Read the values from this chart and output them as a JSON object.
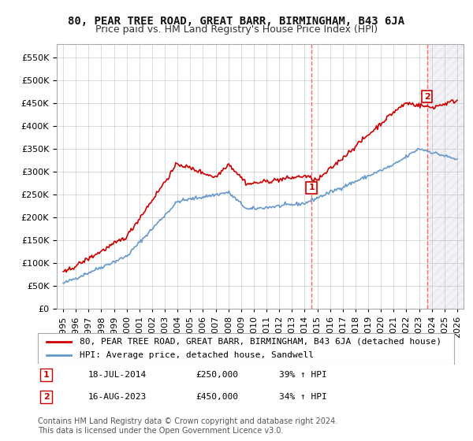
{
  "title": "80, PEAR TREE ROAD, GREAT BARR, BIRMINGHAM, B43 6JA",
  "subtitle": "Price paid vs. HM Land Registry's House Price Index (HPI)",
  "ytick_values": [
    0,
    50000,
    100000,
    150000,
    200000,
    250000,
    300000,
    350000,
    400000,
    450000,
    500000,
    550000
  ],
  "ylim": [
    0,
    580000
  ],
  "legend_line1": "80, PEAR TREE ROAD, GREAT BARR, BIRMINGHAM, B43 6JA (detached house)",
  "legend_line2": "HPI: Average price, detached house, Sandwell",
  "annotation1_date": "18-JUL-2014",
  "annotation1_price": "£250,000",
  "annotation1_hpi": "39% ↑ HPI",
  "annotation2_date": "16-AUG-2023",
  "annotation2_price": "£450,000",
  "annotation2_hpi": "34% ↑ HPI",
  "footer": "Contains HM Land Registry data © Crown copyright and database right 2024.\nThis data is licensed under the Open Government Licence v3.0.",
  "red_color": "#cc0000",
  "blue_color": "#6699cc",
  "grid_color": "#cccccc",
  "background_color": "#ffffff",
  "annotation_vline_color": "#ff6666",
  "title_fontsize": 10,
  "subtitle_fontsize": 9,
  "tick_fontsize": 8,
  "legend_fontsize": 8,
  "annotation_fontsize": 8,
  "footer_fontsize": 7
}
